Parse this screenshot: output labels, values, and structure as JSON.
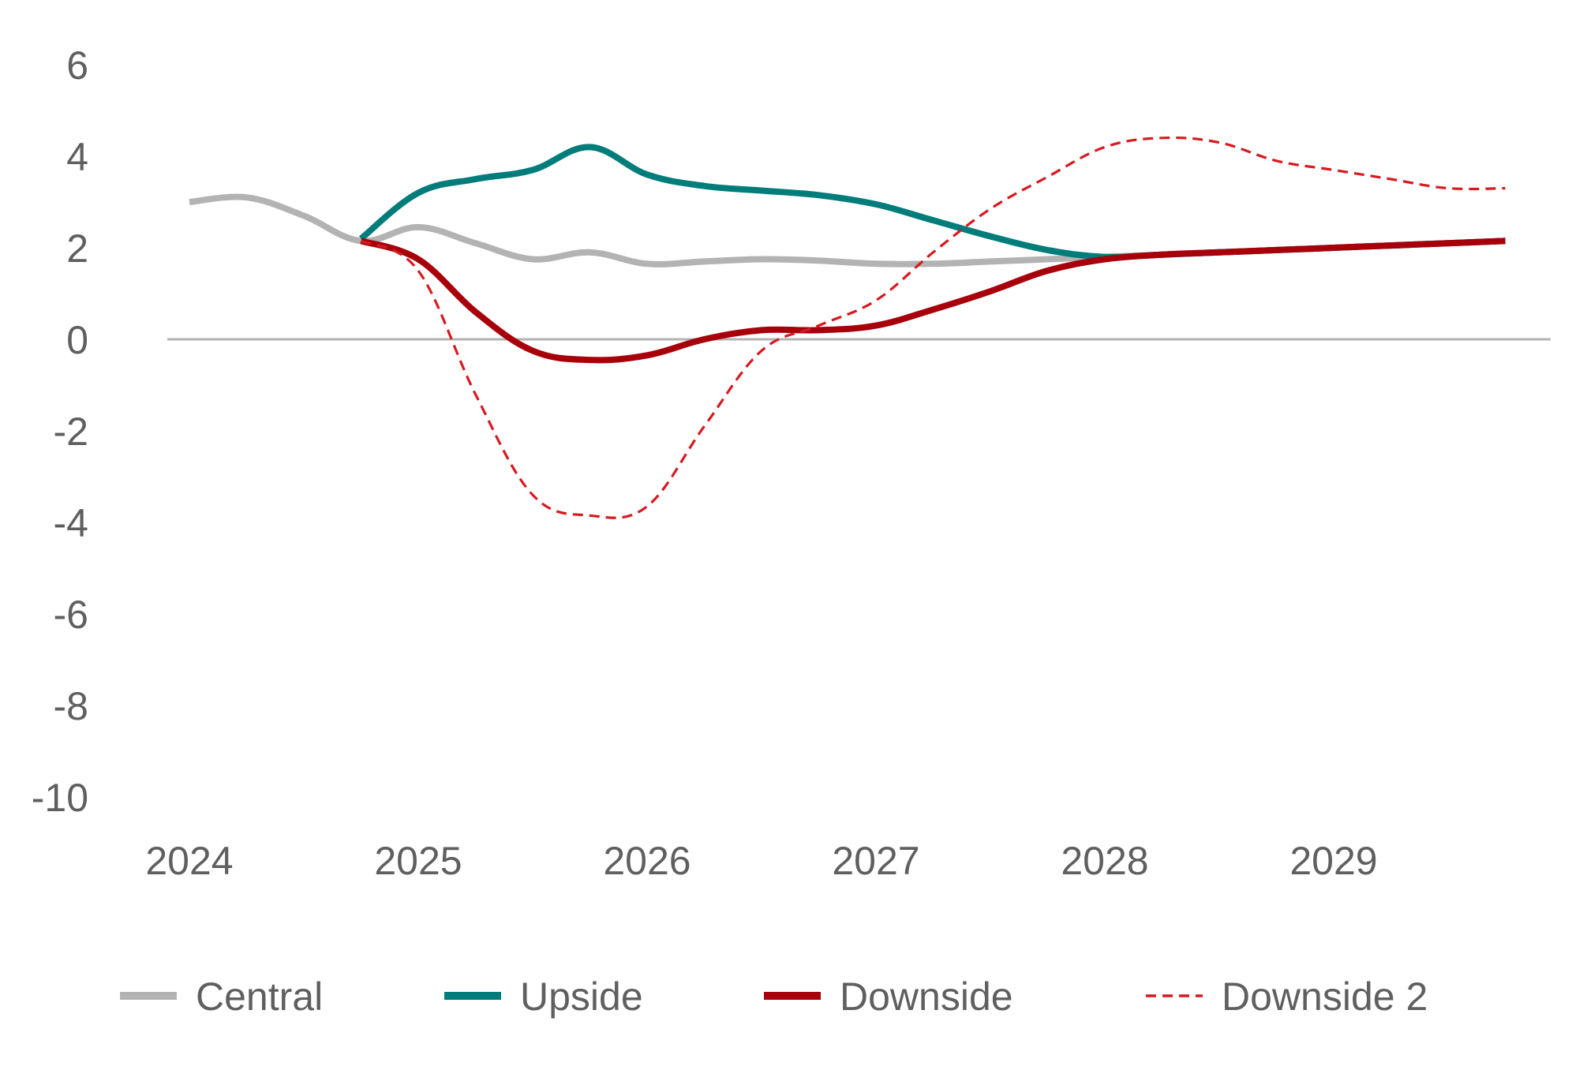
{
  "chart_data": {
    "type": "line",
    "title": "",
    "xlabel": "",
    "ylabel": "",
    "ylim": [
      -10,
      6
    ],
    "yticks": [
      6,
      4,
      2,
      0,
      -2,
      -4,
      -6,
      -8,
      -10
    ],
    "xlim": [
      2024,
      2029.9
    ],
    "xticks": [
      {
        "value": 2024.0,
        "label": "2024"
      },
      {
        "value": 2025.0,
        "label": "2025"
      },
      {
        "value": 2026.0,
        "label": "2026"
      },
      {
        "value": 2027.0,
        "label": "2027"
      },
      {
        "value": 2028.0,
        "label": "2028"
      },
      {
        "value": 2029.0,
        "label": "2029"
      }
    ],
    "zero_line": true,
    "legend_position": "bottom",
    "series": [
      {
        "name": "Central",
        "color": "#b3b3b3",
        "style": "solid",
        "width": "thick",
        "points": [
          [
            2024.0,
            3.0
          ],
          [
            2024.25,
            3.1
          ],
          [
            2024.5,
            2.7
          ],
          [
            2024.75,
            2.15
          ],
          [
            2025.0,
            2.45
          ],
          [
            2025.25,
            2.1
          ],
          [
            2025.5,
            1.75
          ],
          [
            2025.75,
            1.9
          ],
          [
            2026.0,
            1.65
          ],
          [
            2026.25,
            1.7
          ],
          [
            2026.5,
            1.75
          ],
          [
            2026.75,
            1.72
          ],
          [
            2027.0,
            1.65
          ],
          [
            2027.25,
            1.65
          ],
          [
            2027.5,
            1.7
          ],
          [
            2027.75,
            1.75
          ],
          [
            2028.0,
            1.8
          ],
          [
            2028.25,
            1.85
          ],
          [
            2028.5,
            1.9
          ],
          [
            2028.75,
            1.95
          ],
          [
            2029.0,
            2.0
          ],
          [
            2029.25,
            2.05
          ],
          [
            2029.5,
            2.1
          ],
          [
            2029.75,
            2.15
          ]
        ]
      },
      {
        "name": "Upside",
        "color": "#007d7a",
        "style": "solid",
        "width": "thick",
        "points": [
          [
            2024.75,
            2.2
          ],
          [
            2025.0,
            3.2
          ],
          [
            2025.25,
            3.5
          ],
          [
            2025.5,
            3.7
          ],
          [
            2025.75,
            4.2
          ],
          [
            2026.0,
            3.6
          ],
          [
            2026.25,
            3.35
          ],
          [
            2026.5,
            3.25
          ],
          [
            2026.75,
            3.15
          ],
          [
            2027.0,
            2.95
          ],
          [
            2027.25,
            2.6
          ],
          [
            2027.5,
            2.25
          ],
          [
            2027.75,
            1.95
          ],
          [
            2028.0,
            1.8
          ],
          [
            2028.25,
            1.85
          ],
          [
            2028.5,
            1.9
          ],
          [
            2028.75,
            1.95
          ],
          [
            2029.0,
            2.0
          ],
          [
            2029.25,
            2.05
          ],
          [
            2029.5,
            2.1
          ],
          [
            2029.75,
            2.15
          ]
        ]
      },
      {
        "name": "Downside",
        "color": "#a8000b",
        "style": "solid",
        "width": "thick",
        "points": [
          [
            2024.75,
            2.15
          ],
          [
            2025.0,
            1.75
          ],
          [
            2025.25,
            0.6
          ],
          [
            2025.5,
            -0.25
          ],
          [
            2025.75,
            -0.45
          ],
          [
            2026.0,
            -0.35
          ],
          [
            2026.25,
            0.0
          ],
          [
            2026.5,
            0.2
          ],
          [
            2026.75,
            0.2
          ],
          [
            2027.0,
            0.3
          ],
          [
            2027.25,
            0.65
          ],
          [
            2027.5,
            1.05
          ],
          [
            2027.75,
            1.5
          ],
          [
            2028.0,
            1.75
          ],
          [
            2028.25,
            1.85
          ],
          [
            2028.5,
            1.9
          ],
          [
            2028.75,
            1.95
          ],
          [
            2029.0,
            2.0
          ],
          [
            2029.25,
            2.05
          ],
          [
            2029.5,
            2.1
          ],
          [
            2029.75,
            2.15
          ]
        ]
      },
      {
        "name": "Downside 2",
        "color": "#d71920",
        "style": "dashed",
        "width": "thin",
        "points": [
          [
            2024.75,
            2.15
          ],
          [
            2025.0,
            1.5
          ],
          [
            2025.25,
            -1.2
          ],
          [
            2025.5,
            -3.4
          ],
          [
            2025.75,
            -3.85
          ],
          [
            2026.0,
            -3.65
          ],
          [
            2026.25,
            -1.9
          ],
          [
            2026.5,
            -0.25
          ],
          [
            2026.75,
            0.3
          ],
          [
            2027.0,
            0.85
          ],
          [
            2027.25,
            1.9
          ],
          [
            2027.5,
            2.85
          ],
          [
            2027.75,
            3.55
          ],
          [
            2028.0,
            4.2
          ],
          [
            2028.25,
            4.4
          ],
          [
            2028.5,
            4.3
          ],
          [
            2028.75,
            3.9
          ],
          [
            2029.0,
            3.7
          ],
          [
            2029.25,
            3.5
          ],
          [
            2029.5,
            3.3
          ],
          [
            2029.75,
            3.3
          ]
        ]
      }
    ]
  }
}
